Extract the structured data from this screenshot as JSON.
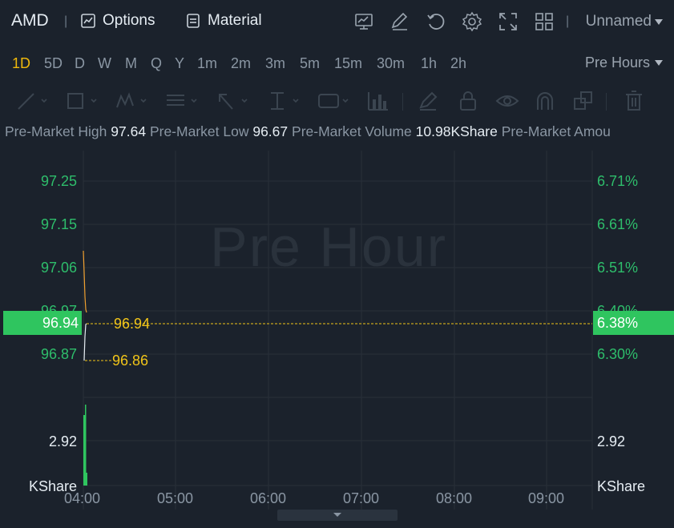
{
  "header": {
    "ticker": "AMD",
    "options_label": "Options",
    "material_label": "Material",
    "layout_name": "Unnamed",
    "icons": [
      "chart-settings-icon",
      "edit-icon",
      "reset-icon",
      "settings-icon",
      "fullscreen-icon",
      "grid-layout-icon"
    ]
  },
  "periods": {
    "items": [
      "1D",
      "5D",
      "D",
      "W",
      "M",
      "Q",
      "Y",
      "1m",
      "2m",
      "3m",
      "5m",
      "15m",
      "30m",
      "1h",
      "2h"
    ],
    "active": "1D",
    "session_label": "Pre Hours"
  },
  "info": {
    "high_label": "Pre-Market High",
    "high_value": "97.64",
    "low_label": "Pre-Market Low",
    "low_value": "96.67",
    "volume_label": "Pre-Market Volume",
    "volume_value": "10.98KShare",
    "amount_label": "Pre-Market Amou"
  },
  "chart": {
    "watermark": "Pre Hour",
    "y_left": [
      "97.25",
      "97.15",
      "97.06",
      "96.97",
      "96.87"
    ],
    "y_right": [
      "6.71%",
      "6.61%",
      "6.51%",
      "6.40%",
      "6.30%"
    ],
    "current_price": "96.94",
    "current_pct": "6.38%",
    "last_price_label": "96.94",
    "low_price_label": "96.86",
    "volume_left": "2.92",
    "volume_right": "2.92",
    "volume_unit_left": "KShare",
    "volume_unit_right": "KShare",
    "x_labels": [
      "04:00",
      "05:00",
      "06:00",
      "07:00",
      "08:00",
      "09:00"
    ],
    "colors": {
      "up": "#2fc55f",
      "price_line": "#ffffff",
      "avg_line": "#f0a030",
      "label": "#f0c419"
    }
  }
}
